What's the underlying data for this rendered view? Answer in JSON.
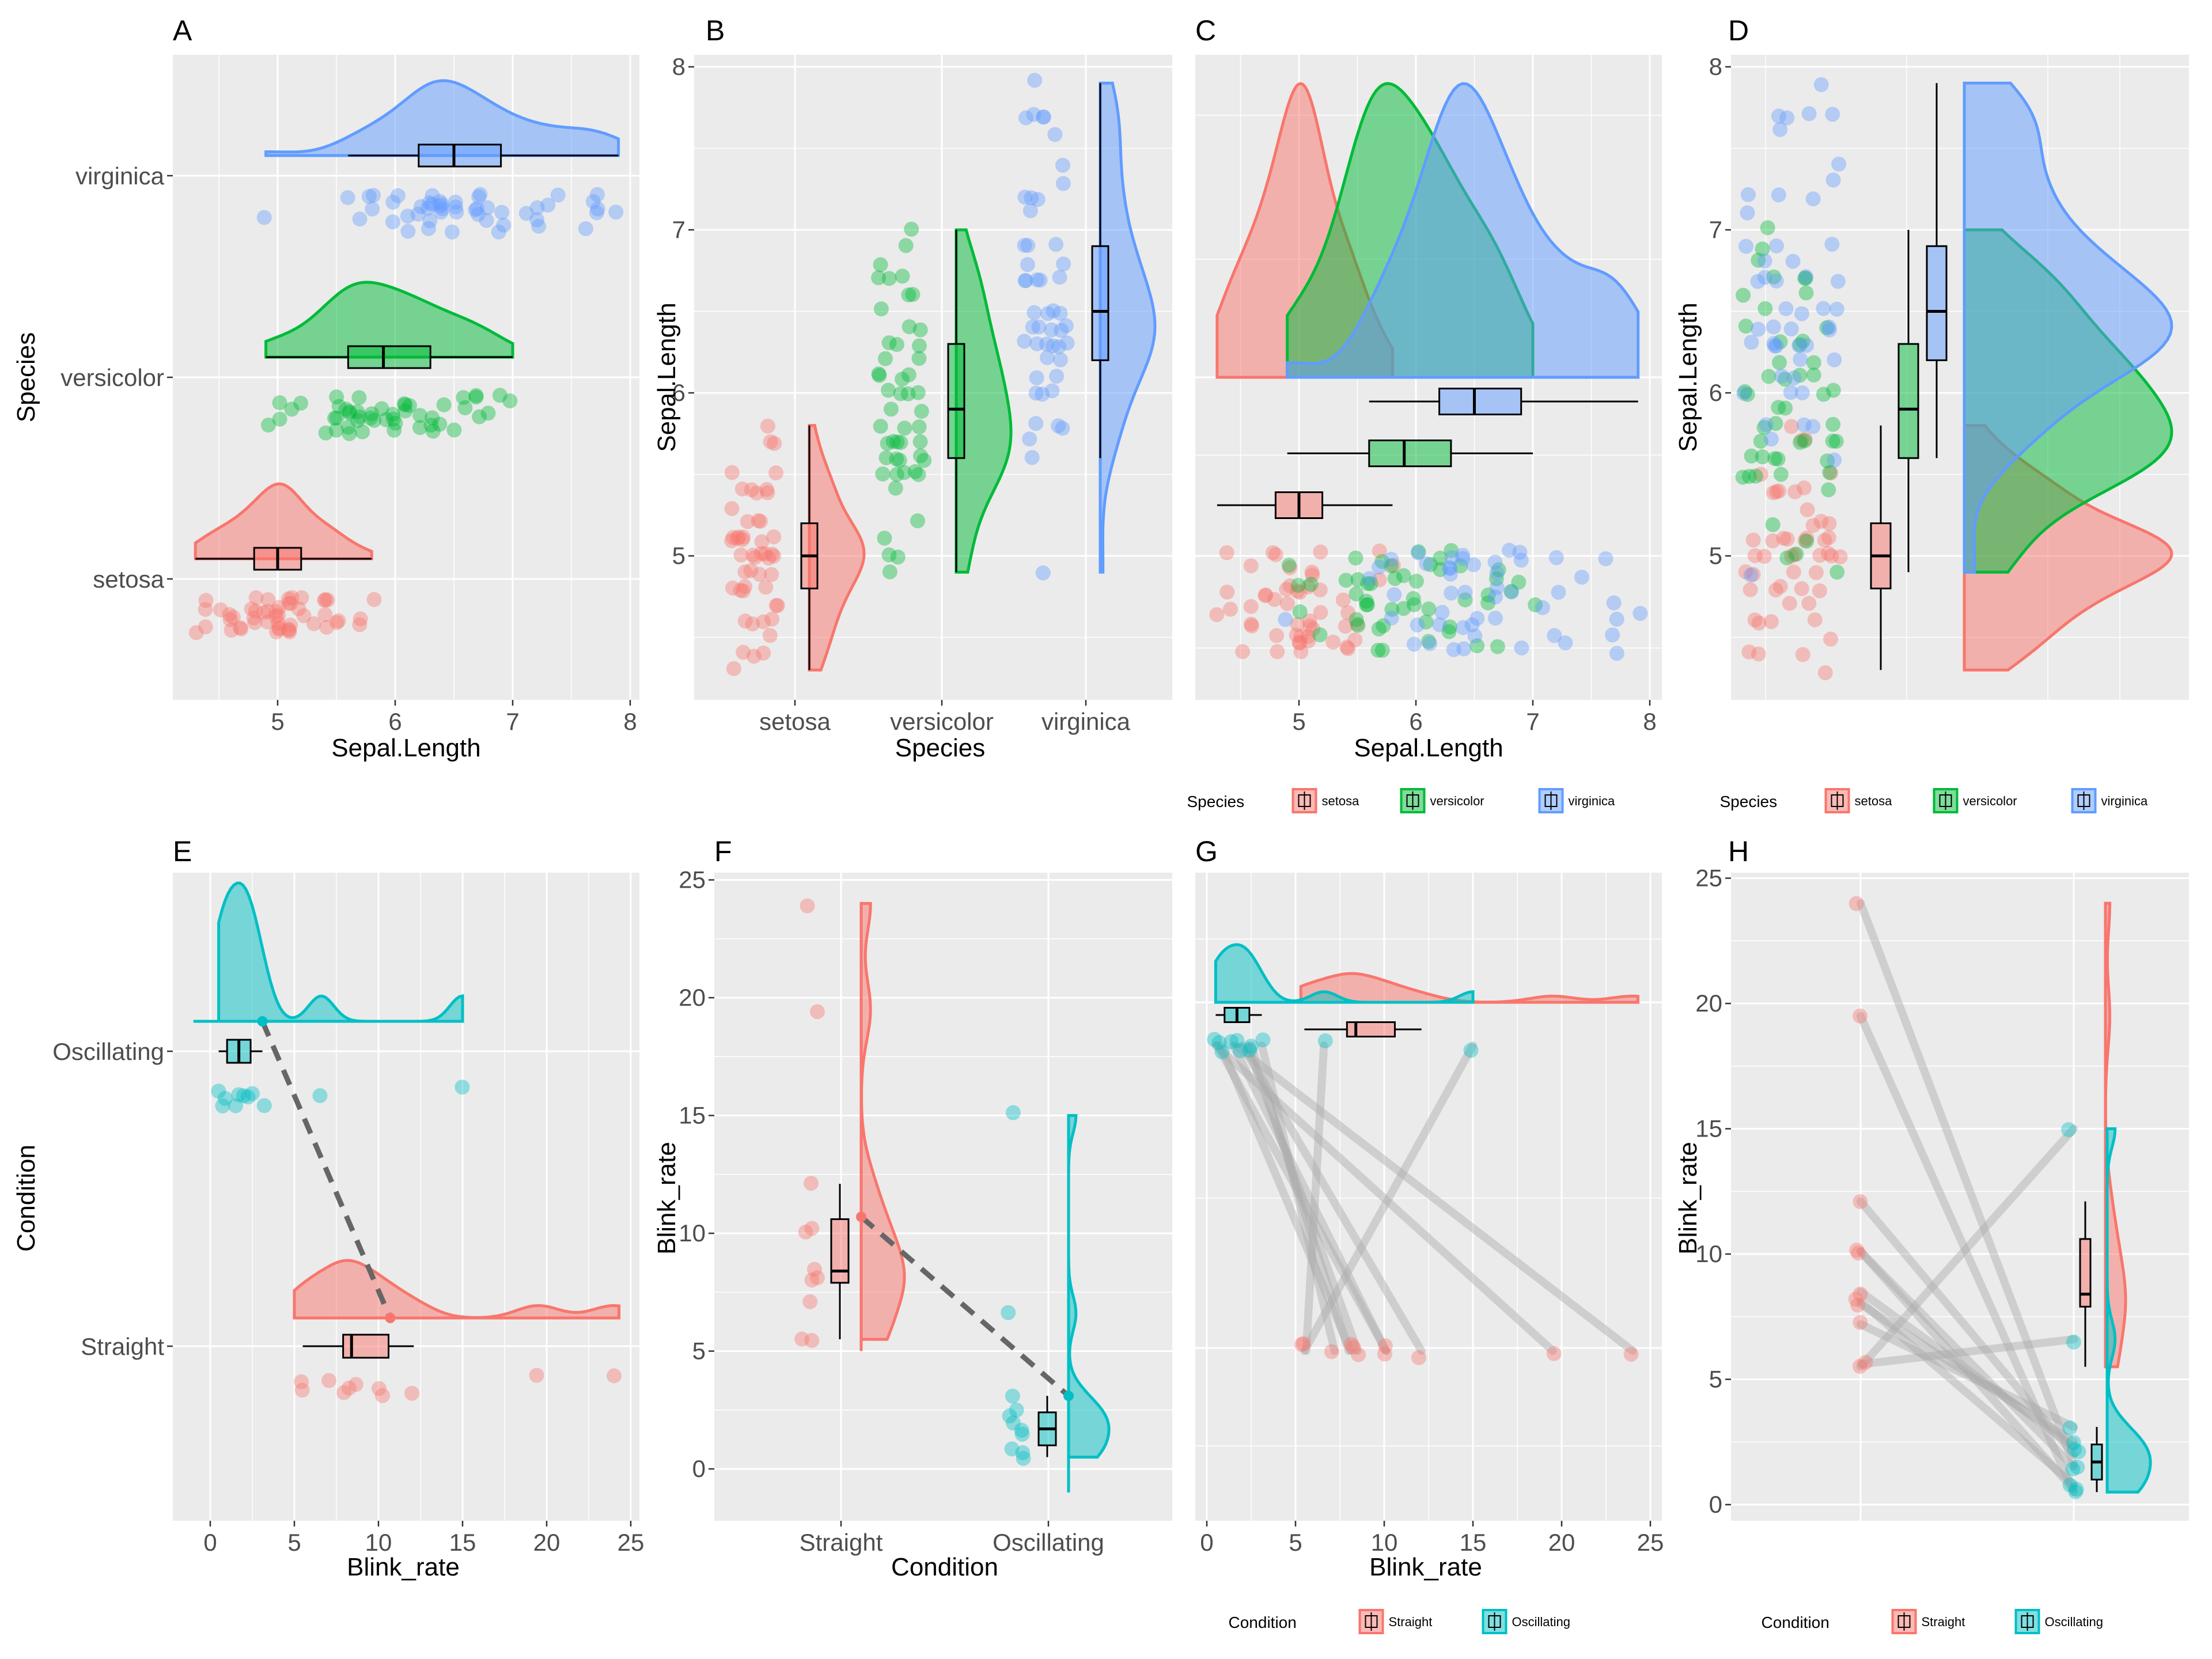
{
  "colors": {
    "setosa": "#F8766D",
    "versicolor": "#00BA38",
    "virginica": "#619CFF",
    "straight": "#F8766D",
    "oscillating": "#00BFC4",
    "panel_bg": "#EBEBEB",
    "grid": "#FFFFFF"
  },
  "chart_data": [
    {
      "panel": "A",
      "type": "raincloud",
      "xlabel": "Sepal.Length",
      "ylabel": "Species",
      "xlim": [
        4.3,
        8.0
      ],
      "xticks": [
        "5",
        "6",
        "7",
        "8"
      ],
      "categories": [
        "setosa",
        "versicolor",
        "virginica"
      ],
      "series": [
        {
          "name": "setosa",
          "min": 4.3,
          "q1": 4.8,
          "median": 5.0,
          "q3": 5.2,
          "max": 5.8,
          "points": [
            4.3,
            4.4,
            4.4,
            4.4,
            4.5,
            4.6,
            4.6,
            4.6,
            4.6,
            4.7,
            4.7,
            4.8,
            4.8,
            4.8,
            4.8,
            4.8,
            4.9,
            4.9,
            4.9,
            4.9,
            5.0,
            5.0,
            5.0,
            5.0,
            5.0,
            5.0,
            5.0,
            5.0,
            5.1,
            5.1,
            5.1,
            5.1,
            5.1,
            5.1,
            5.1,
            5.1,
            5.2,
            5.2,
            5.2,
            5.3,
            5.4,
            5.4,
            5.4,
            5.4,
            5.4,
            5.5,
            5.5,
            5.7,
            5.7,
            5.8
          ]
        },
        {
          "name": "versicolor",
          "min": 4.9,
          "q1": 5.6,
          "median": 5.9,
          "q3": 6.3,
          "max": 7.0,
          "points": [
            4.9,
            5.0,
            5.0,
            5.1,
            5.2,
            5.4,
            5.5,
            5.5,
            5.5,
            5.5,
            5.5,
            5.6,
            5.6,
            5.6,
            5.6,
            5.6,
            5.7,
            5.7,
            5.7,
            5.7,
            5.7,
            5.8,
            5.8,
            5.8,
            5.9,
            5.9,
            6.0,
            6.0,
            6.0,
            6.0,
            6.1,
            6.1,
            6.1,
            6.1,
            6.2,
            6.2,
            6.3,
            6.3,
            6.3,
            6.4,
            6.4,
            6.5,
            6.6,
            6.6,
            6.7,
            6.7,
            6.7,
            6.8,
            6.9,
            7.0
          ]
        },
        {
          "name": "virginica",
          "min": 5.6,
          "q1": 6.2,
          "median": 6.5,
          "q3": 6.9,
          "max": 7.9,
          "outlier": 4.9,
          "points": [
            4.9,
            5.6,
            5.7,
            5.8,
            5.8,
            5.8,
            6.0,
            6.0,
            6.1,
            6.1,
            6.2,
            6.2,
            6.3,
            6.3,
            6.3,
            6.3,
            6.3,
            6.3,
            6.4,
            6.4,
            6.4,
            6.4,
            6.4,
            6.5,
            6.5,
            6.5,
            6.5,
            6.7,
            6.7,
            6.7,
            6.7,
            6.7,
            6.8,
            6.8,
            6.9,
            6.9,
            6.9,
            7.1,
            7.2,
            7.2,
            7.2,
            7.3,
            7.4,
            7.6,
            7.7,
            7.7,
            7.7,
            7.7,
            7.9,
            6.0
          ]
        }
      ]
    },
    {
      "panel": "B",
      "type": "raincloud",
      "xlabel": "Species",
      "ylabel": "Sepal.Length",
      "categories": [
        "setosa",
        "versicolor",
        "virginica"
      ],
      "ylim": [
        4.3,
        8.0
      ],
      "yticks": [
        "5",
        "6",
        "7",
        "8"
      ]
    },
    {
      "panel": "C",
      "type": "raincloud",
      "xlabel": "Sepal.Length",
      "xlim": [
        4.3,
        8.0
      ],
      "xticks": [
        "5",
        "6",
        "7",
        "8"
      ],
      "legend": {
        "title": "Species",
        "labels": [
          "setosa",
          "versicolor",
          "virginica"
        ],
        "position": "bottom"
      }
    },
    {
      "panel": "D",
      "type": "raincloud",
      "ylabel": "Sepal.Length",
      "ylim": [
        4.3,
        8.0
      ],
      "yticks": [
        "5",
        "6",
        "7",
        "8"
      ],
      "legend": {
        "title": "Species",
        "labels": [
          "setosa",
          "versicolor",
          "virginica"
        ],
        "position": "bottom"
      }
    },
    {
      "panel": "E",
      "type": "raincloud",
      "xlabel": "Blink_rate",
      "ylabel": "Condition",
      "xlim": [
        0,
        25
      ],
      "xticks": [
        "0",
        "5",
        "10",
        "15",
        "20",
        "25"
      ],
      "categories": [
        "Straight",
        "Oscillating"
      ],
      "series": [
        {
          "name": "Straight",
          "min": 5.5,
          "q1": 7.9,
          "median": 8.4,
          "q3": 10.6,
          "max": 12.1,
          "mean": 10.7,
          "points": [
            5.5,
            5.6,
            7.2,
            8.0,
            8.1,
            8.5,
            10.1,
            10.1,
            12.1,
            19.5,
            24.0
          ]
        },
        {
          "name": "Oscillating",
          "min": 0.5,
          "q1": 1.0,
          "median": 1.7,
          "q3": 2.4,
          "max": 3.1,
          "mean": 3.1,
          "points": [
            0.5,
            0.6,
            0.8,
            1.5,
            1.6,
            2.0,
            2.3,
            2.5,
            3.1,
            6.6,
            15.0
          ]
        }
      ]
    },
    {
      "panel": "F",
      "type": "raincloud",
      "xlabel": "Condition",
      "ylabel": "Blink_rate",
      "categories": [
        "Straight",
        "Oscillating"
      ],
      "ylim": [
        0,
        25
      ],
      "yticks": [
        "0",
        "5",
        "10",
        "15",
        "20",
        "25"
      ]
    },
    {
      "panel": "G",
      "type": "raincloud",
      "xlabel": "Blink_rate",
      "xlim": [
        0,
        25
      ],
      "xticks": [
        "0",
        "5",
        "10",
        "15",
        "20",
        "25"
      ],
      "legend": {
        "title": "Condition",
        "labels": [
          "Straight",
          "Oscillating"
        ],
        "position": "bottom"
      }
    },
    {
      "panel": "H",
      "type": "raincloud",
      "ylabel": "Blink_rate",
      "ylim": [
        0,
        25
      ],
      "yticks": [
        "0",
        "5",
        "10",
        "15",
        "20",
        "25"
      ],
      "pairs": [
        [
          24.0,
          1.6
        ],
        [
          19.5,
          0.5
        ],
        [
          12.1,
          2.0
        ],
        [
          10.1,
          0.6
        ],
        [
          10.1,
          1.5
        ],
        [
          8.5,
          2.3
        ],
        [
          8.1,
          0.8
        ],
        [
          8.0,
          2.5
        ],
        [
          7.2,
          3.1
        ],
        [
          5.6,
          6.6
        ],
        [
          5.5,
          15.0
        ]
      ],
      "legend": {
        "title": "Condition",
        "labels": [
          "Straight",
          "Oscillating"
        ],
        "position": "bottom"
      }
    }
  ]
}
